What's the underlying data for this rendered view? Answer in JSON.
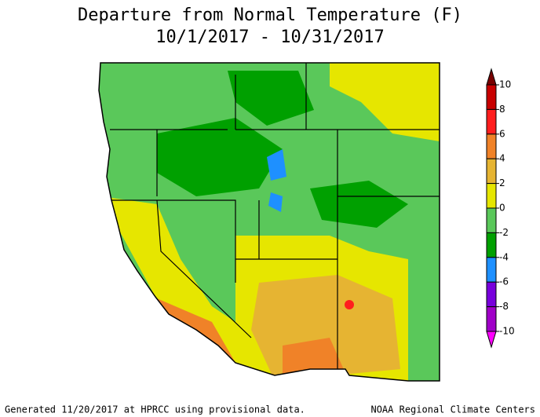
{
  "title": "Departure from Normal Temperature (F)",
  "subtitle": "10/1/2017 - 10/31/2017",
  "legend": {
    "ticks": [
      10,
      8,
      6,
      4,
      2,
      0,
      -2,
      -4,
      -6,
      -8,
      -10
    ],
    "colors": [
      "#780000",
      "#c80000",
      "#ff1e1e",
      "#f08228",
      "#e6b432",
      "#e6e600",
      "#5ac85a",
      "#00a000",
      "#1e90ff",
      "#7800dc",
      "#a000c8",
      "#ff00ff"
    ]
  },
  "footer_left": "Generated 11/20/2017 at HPRCC using provisional data.",
  "footer_right": "NOAA Regional Climate Centers"
}
